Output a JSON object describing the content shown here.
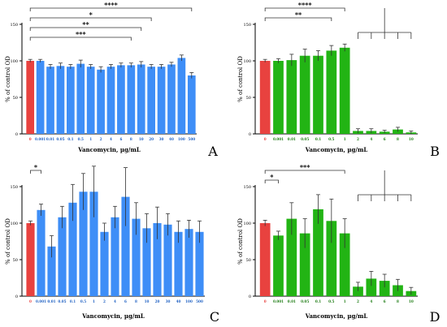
{
  "chart_data": [
    {
      "panel_label": "A",
      "type": "bar",
      "ylabel": "% of control OD",
      "xlabel": "Vancomycin, µg/mL",
      "ylim": [
        0,
        150
      ],
      "yticks": [
        0,
        50,
        100,
        150
      ],
      "grid": false,
      "categories": [
        "0",
        "0.001",
        "0.01",
        "0.05",
        "0.1",
        "0.5",
        "1",
        "2",
        "4",
        "6",
        "8",
        "10",
        "20",
        "30",
        "40",
        "100",
        "500"
      ],
      "values": [
        100,
        100,
        92,
        93,
        92,
        96,
        92,
        88,
        92,
        94,
        94,
        95,
        92,
        92,
        95,
        104,
        80
      ],
      "errors": [
        2,
        2,
        3,
        4,
        3,
        5,
        3,
        4,
        3,
        3,
        3,
        4,
        3,
        3,
        3,
        4,
        4
      ],
      "colors": [
        "#e8423f",
        "#3e8ef7",
        "#3e8ef7",
        "#3e8ef7",
        "#3e8ef7",
        "#3e8ef7",
        "#3e8ef7",
        "#3e8ef7",
        "#3e8ef7",
        "#3e8ef7",
        "#3e8ef7",
        "#3e8ef7",
        "#3e8ef7",
        "#3e8ef7",
        "#3e8ef7",
        "#3e8ef7",
        "#3e8ef7"
      ],
      "significance": [
        {
          "label": "****",
          "from": 0,
          "to": 16
        },
        {
          "label": "*",
          "from": 0,
          "to": 12
        },
        {
          "label": "**",
          "from": 0,
          "to": 11
        },
        {
          "label": "***",
          "from": 0,
          "to": 10
        }
      ]
    },
    {
      "panel_label": "B",
      "type": "bar",
      "ylabel": "% of control OD",
      "xlabel": "Vancomycin, µg/mL",
      "ylim": [
        0,
        150
      ],
      "yticks": [
        0,
        50,
        100,
        150
      ],
      "grid": false,
      "categories": [
        "0",
        "0.001",
        "0.01",
        "0.05",
        "0.1",
        "0.5",
        "1",
        "2",
        "4",
        "6",
        "8",
        "10"
      ],
      "values": [
        100,
        100,
        101,
        107,
        107,
        114,
        118,
        4,
        4,
        3,
        6,
        2
      ],
      "errors": [
        2,
        3,
        8,
        9,
        7,
        7,
        5,
        3,
        3,
        2,
        3,
        2
      ],
      "colors": [
        "#e8423f",
        "#22b414",
        "#22b414",
        "#22b414",
        "#22b414",
        "#22b414",
        "#22b414",
        "#22b414",
        "#22b414",
        "#22b414",
        "#22b414",
        "#22b414"
      ],
      "significance": [
        {
          "label": "****",
          "from": 0,
          "to": 6
        },
        {
          "label": "**",
          "from": 0,
          "to": 5
        }
      ],
      "bracket_groups": [
        7,
        8,
        9,
        10,
        11
      ]
    },
    {
      "panel_label": "C",
      "type": "bar",
      "ylabel": "% of control OD",
      "xlabel": "Vancomycin, µg/mL",
      "ylim": [
        0,
        150
      ],
      "yticks": [
        0,
        50,
        100,
        150
      ],
      "grid": false,
      "categories": [
        "0",
        "0.001",
        "0.01",
        "0.05",
        "0.1",
        "0.5",
        "1",
        "2",
        "4",
        "6",
        "8",
        "10",
        "20",
        "30",
        "40",
        "100",
        "500"
      ],
      "values": [
        100,
        118,
        68,
        108,
        128,
        143,
        143,
        88,
        108,
        136,
        106,
        93,
        100,
        98,
        88,
        92,
        88
      ],
      "errors": [
        3,
        8,
        15,
        15,
        25,
        25,
        35,
        12,
        15,
        40,
        22,
        20,
        22,
        15,
        15,
        12,
        15
      ],
      "colors": [
        "#e8423f",
        "#3e8ef7",
        "#3e8ef7",
        "#3e8ef7",
        "#3e8ef7",
        "#3e8ef7",
        "#3e8ef7",
        "#3e8ef7",
        "#3e8ef7",
        "#3e8ef7",
        "#3e8ef7",
        "#3e8ef7",
        "#3e8ef7",
        "#3e8ef7",
        "#3e8ef7",
        "#3e8ef7",
        "#3e8ef7"
      ],
      "significance": [
        {
          "label": "*",
          "from": 0,
          "to": 1
        }
      ]
    },
    {
      "panel_label": "D",
      "type": "bar",
      "ylabel": "% of control OD",
      "xlabel": "Vancomycin, µg/mL",
      "ylim": [
        0,
        150
      ],
      "yticks": [
        0,
        50,
        100,
        150
      ],
      "grid": false,
      "categories": [
        "0",
        "0.001",
        "0.01",
        "0.05",
        "0.1",
        "0.5",
        "1",
        "2",
        "4",
        "6",
        "8",
        "10"
      ],
      "values": [
        100,
        83,
        106,
        86,
        119,
        103,
        86,
        13,
        24,
        21,
        15,
        7
      ],
      "errors": [
        4,
        6,
        22,
        20,
        20,
        30,
        20,
        6,
        10,
        9,
        8,
        5
      ],
      "colors": [
        "#e8423f",
        "#22b414",
        "#22b414",
        "#22b414",
        "#22b414",
        "#22b414",
        "#22b414",
        "#22b414",
        "#22b414",
        "#22b414",
        "#22b414",
        "#22b414"
      ],
      "significance": [
        {
          "label": "***",
          "from": 0,
          "to": 6
        },
        {
          "label": "*",
          "from": 0,
          "to": 1
        }
      ],
      "bracket_groups": [
        7,
        8,
        9,
        10,
        11
      ]
    }
  ]
}
